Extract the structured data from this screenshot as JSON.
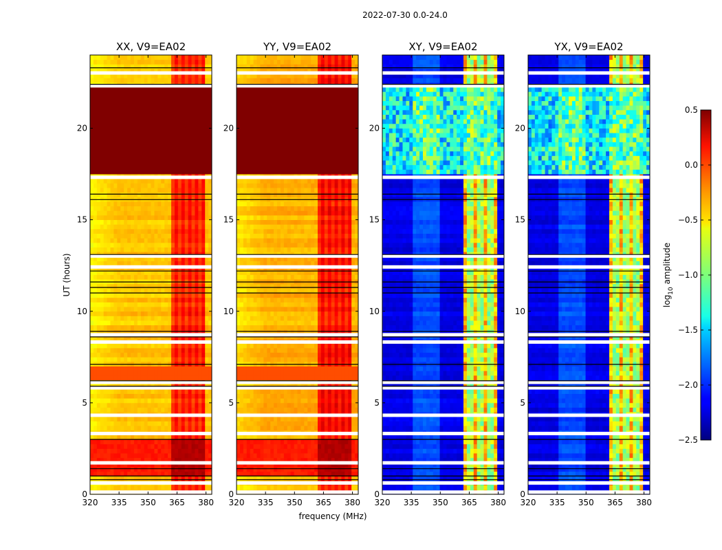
{
  "figure": {
    "suptitle": "2022-07-30 0.0-24.0",
    "xlabel": "frequency (MHz)",
    "ylabel": "UT (hours)",
    "colorbar_label_main": "log",
    "colorbar_label_sub": "10",
    "colorbar_label_rest": " amplitude"
  },
  "chart_data": [
    {
      "type": "heatmap",
      "title": "XX, V9=EA02",
      "x_ticks": [
        320,
        335,
        350,
        365,
        380
      ],
      "y_ticks": [
        0,
        5,
        10,
        15,
        20
      ],
      "xlim": [
        320,
        383
      ],
      "ylim": [
        0,
        24
      ],
      "base_level": -0.45,
      "rfi_band_mhz": [
        362,
        380
      ],
      "saturated_hours": [
        17.5,
        22.2
      ],
      "strong_hours": [
        0.9,
        3.1
      ]
    },
    {
      "type": "heatmap",
      "title": "YY, V9=EA02",
      "x_ticks": [
        320,
        335,
        350,
        365,
        380
      ],
      "y_ticks": [
        0,
        5,
        10,
        15,
        20
      ],
      "xlim": [
        320,
        383
      ],
      "ylim": [
        0,
        24
      ],
      "base_level": -0.4,
      "rfi_band_mhz": [
        362,
        380
      ],
      "saturated_hours": [
        17.5,
        22.2
      ],
      "strong_hours": [
        0.9,
        3.1
      ]
    },
    {
      "type": "heatmap",
      "title": "XY, V9=EA02",
      "x_ticks": [
        320,
        335,
        350,
        365,
        380
      ],
      "y_ticks": [
        0,
        5,
        10,
        15,
        20
      ],
      "xlim": [
        320,
        383
      ],
      "ylim": [
        0,
        24
      ],
      "base_level": -2.2,
      "rfi_band_mhz": [
        362,
        380
      ],
      "noisy_hours": [
        17.5,
        22.2
      ]
    },
    {
      "type": "heatmap",
      "title": "YX, V9=EA02",
      "x_ticks": [
        320,
        335,
        350,
        365,
        380
      ],
      "y_ticks": [
        0,
        5,
        10,
        15,
        20
      ],
      "xlim": [
        320,
        383
      ],
      "ylim": [
        0,
        24
      ],
      "base_level": -2.2,
      "rfi_band_mhz": [
        362,
        380
      ],
      "noisy_hours": [
        17.5,
        22.2
      ]
    }
  ],
  "colorbar": {
    "range": [
      -2.5,
      0.5
    ],
    "ticks": [
      "−2.5",
      "−2.0",
      "−1.5",
      "−1.0",
      "−0.5",
      "0.0",
      "0.5"
    ],
    "colormap": "jet"
  },
  "flagged_white_hours": [
    0.1,
    0.6,
    1.7,
    3.3,
    4.3,
    5.8,
    6.1,
    8.3,
    8.7,
    12.4,
    13.0,
    17.3,
    22.3,
    23.0
  ],
  "flagged_black_hours": [
    0.8,
    1.0,
    1.4,
    3.0,
    5.9,
    6.2,
    7.1,
    8.6,
    8.9,
    11.0,
    11.3,
    11.6,
    12.2,
    13.1,
    16.1,
    16.4,
    22.4,
    23.3
  ]
}
